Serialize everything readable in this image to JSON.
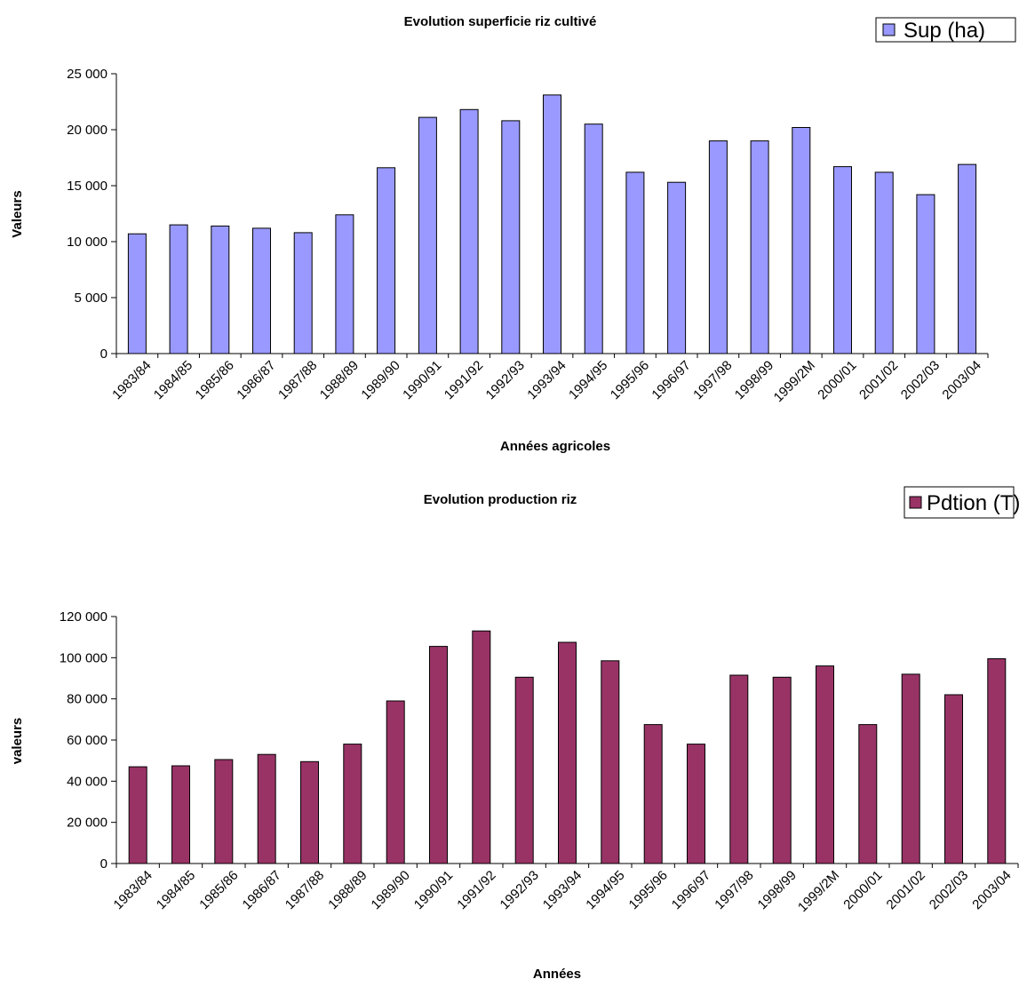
{
  "chart_data": [
    {
      "type": "bar",
      "title": "Evolution superficie riz cultivé",
      "xlabel": "Années agricoles",
      "ylabel": "Valeurs",
      "ylim": [
        0,
        25000
      ],
      "yticks": [
        "0",
        "5 000",
        "10 000",
        "15 000",
        "20 000",
        "25 000"
      ],
      "grid": false,
      "legend_position": "top-right",
      "categories": [
        "1983/84",
        "1984/85",
        "1985/86",
        "1986/87",
        "1987/88",
        "1988/89",
        "1989/90",
        "1990/91",
        "1991/92",
        "1992/93",
        "1993/94",
        "1994/95",
        "1995/96",
        "1996/97",
        "1997/98",
        "1998/99",
        "1999/2M",
        "2000/01",
        "2001/02",
        "2002/03",
        "2003/04"
      ],
      "series": [
        {
          "name": "Sup (ha)",
          "color": "#9999ff",
          "values": [
            10700,
            11500,
            11400,
            11200,
            10800,
            12400,
            16600,
            21100,
            21800,
            20800,
            23100,
            20500,
            16200,
            15300,
            19000,
            19000,
            20200,
            16700,
            16200,
            14200,
            16900
          ]
        }
      ]
    },
    {
      "type": "bar",
      "title": "Evolution production riz",
      "xlabel": "Années",
      "ylabel": "valeurs",
      "ylim": [
        0,
        120000
      ],
      "yticks": [
        "0",
        "20 000",
        "40 000",
        "60 000",
        "80 000",
        "100 000",
        "120 000"
      ],
      "grid": false,
      "legend_position": "top-right",
      "categories": [
        "1983/84",
        "1984/85",
        "1985/86",
        "1986/87",
        "1987/88",
        "1988/89",
        "1989/90",
        "1990/91",
        "1991/92",
        "1992/93",
        "1993/94",
        "1994/95",
        "1995/96",
        "1996/97",
        "1997/98",
        "1998/99",
        "1999/2M",
        "2000/01",
        "2001/02",
        "2002/03",
        "2003/04"
      ],
      "series": [
        {
          "name": "Pdtion (T)",
          "color": "#993366",
          "values": [
            47000,
            47500,
            50500,
            53000,
            49500,
            58000,
            79000,
            105500,
            113000,
            90500,
            107500,
            98500,
            67500,
            58000,
            91500,
            90500,
            96000,
            67500,
            92000,
            82000,
            99500
          ]
        }
      ]
    }
  ]
}
